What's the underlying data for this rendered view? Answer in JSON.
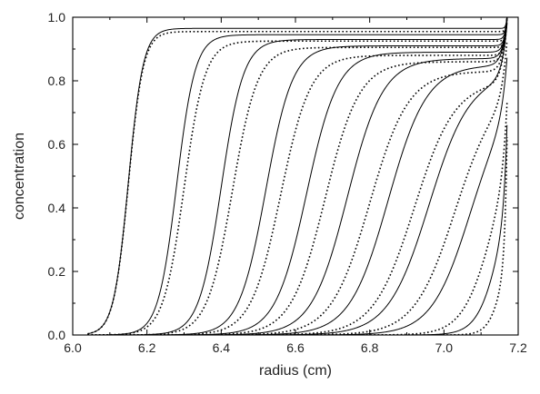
{
  "chart_data": {
    "type": "line",
    "title": "",
    "xlabel": "radius (cm)",
    "ylabel": "concentration",
    "xlim": [
      6.0,
      7.2
    ],
    "ylim": [
      0.0,
      1.0
    ],
    "xticks": [
      "6.0",
      "6.2",
      "6.4",
      "6.6",
      "6.8",
      "7.0",
      "7.2"
    ],
    "yticks": [
      "0.0",
      "0.2",
      "0.4",
      "0.6",
      "0.8",
      "1.0"
    ],
    "grid": false,
    "legend": "none",
    "meniscus_radius": 6.04,
    "bottom_radius": 7.17,
    "series": [
      {
        "style": "solid",
        "midpoint": 6.15,
        "width": 0.02,
        "plateau": 0.965,
        "rise_amp": 0.035,
        "rise_scale": 0.003
      },
      {
        "style": "dotted",
        "midpoint": 6.15,
        "width": 0.02,
        "plateau": 0.955,
        "rise_amp": 0.045,
        "rise_scale": 0.003
      },
      {
        "style": "solid",
        "midpoint": 6.28,
        "width": 0.025,
        "plateau": 0.945,
        "rise_amp": 0.055,
        "rise_scale": 0.004
      },
      {
        "style": "dotted",
        "midpoint": 6.3,
        "width": 0.028,
        "plateau": 0.925,
        "rise_amp": 0.075,
        "rise_scale": 0.004
      },
      {
        "style": "solid",
        "midpoint": 6.4,
        "width": 0.03,
        "plateau": 0.93,
        "rise_amp": 0.07,
        "rise_scale": 0.005
      },
      {
        "style": "dotted",
        "midpoint": 6.43,
        "width": 0.034,
        "plateau": 0.905,
        "rise_amp": 0.095,
        "rise_scale": 0.005
      },
      {
        "style": "solid",
        "midpoint": 6.52,
        "width": 0.036,
        "plateau": 0.91,
        "rise_amp": 0.09,
        "rise_scale": 0.006
      },
      {
        "style": "dotted",
        "midpoint": 6.56,
        "width": 0.04,
        "plateau": 0.88,
        "rise_amp": 0.12,
        "rise_scale": 0.007
      },
      {
        "style": "solid",
        "midpoint": 6.63,
        "width": 0.042,
        "plateau": 0.89,
        "rise_amp": 0.11,
        "rise_scale": 0.008
      },
      {
        "style": "dotted",
        "midpoint": 6.68,
        "width": 0.046,
        "plateau": 0.86,
        "rise_amp": 0.14,
        "rise_scale": 0.009
      },
      {
        "style": "solid",
        "midpoint": 6.74,
        "width": 0.048,
        "plateau": 0.87,
        "rise_amp": 0.13,
        "rise_scale": 0.01
      },
      {
        "style": "dotted",
        "midpoint": 6.8,
        "width": 0.052,
        "plateau": 0.83,
        "rise_amp": 0.17,
        "rise_scale": 0.011
      },
      {
        "style": "solid",
        "midpoint": 6.85,
        "width": 0.052,
        "plateau": 0.85,
        "rise_amp": 0.15,
        "rise_scale": 0.012
      },
      {
        "style": "dotted",
        "midpoint": 6.92,
        "width": 0.055,
        "plateau": 0.8,
        "rise_amp": 0.2,
        "rise_scale": 0.013
      },
      {
        "style": "solid",
        "midpoint": 6.96,
        "width": 0.055,
        "plateau": 0.82,
        "rise_amp": 0.18,
        "rise_scale": 0.014
      },
      {
        "style": "dotted",
        "midpoint": 7.03,
        "width": 0.055,
        "plateau": 0.78,
        "rise_amp": 0.22,
        "rise_scale": 0.015
      },
      {
        "style": "solid",
        "midpoint": 7.07,
        "width": 0.052,
        "plateau": 0.76,
        "rise_amp": 0.24,
        "rise_scale": 0.016
      },
      {
        "style": "dotted",
        "midpoint": 7.13,
        "width": 0.04,
        "plateau": 0.65,
        "rise_amp": 0.35,
        "rise_scale": 0.014
      },
      {
        "style": "solid",
        "midpoint": 7.15,
        "width": 0.03,
        "plateau": 0.55,
        "rise_amp": 0.45,
        "rise_scale": 0.01
      },
      {
        "style": "dotted",
        "midpoint": 7.16,
        "width": 0.02,
        "plateau": 0.35,
        "rise_amp": 0.65,
        "rise_scale": 0.007
      }
    ]
  }
}
